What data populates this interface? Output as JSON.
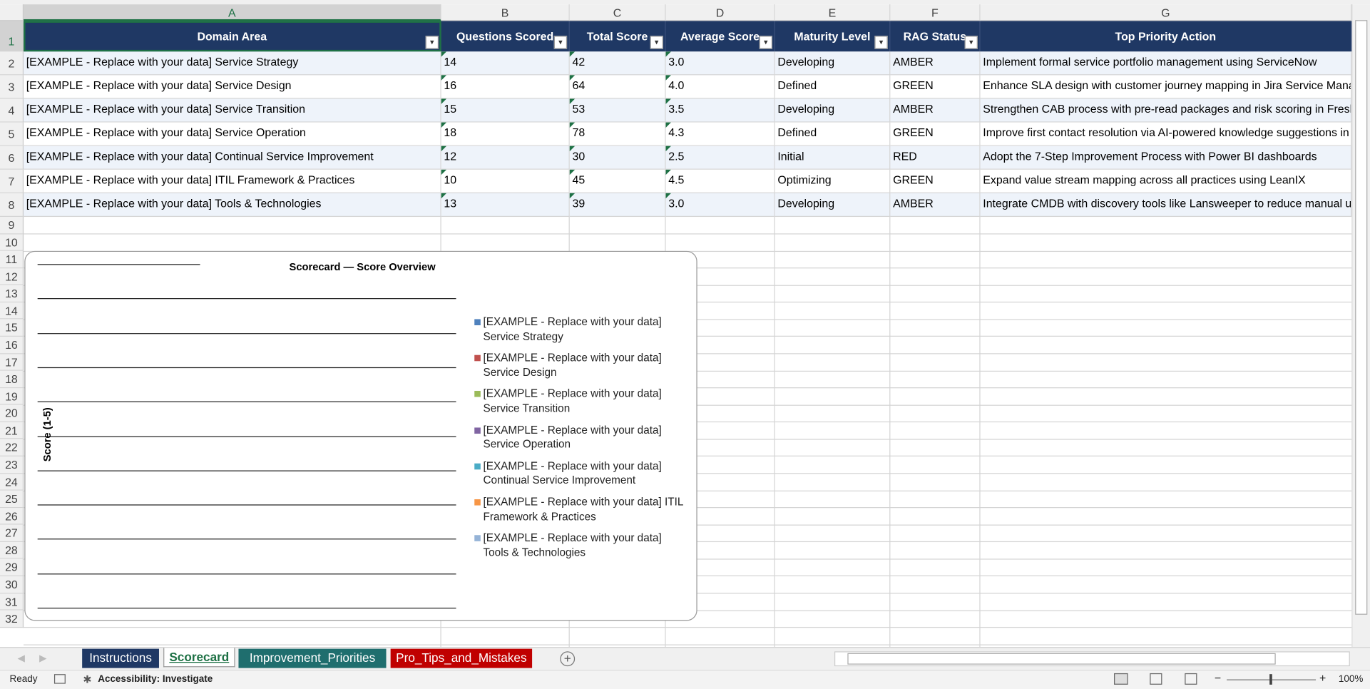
{
  "columns": [
    "A",
    "B",
    "C",
    "D",
    "E",
    "F",
    "G"
  ],
  "row_numbers": [
    1,
    2,
    3,
    4,
    5,
    6,
    7,
    8,
    9,
    10,
    11,
    12,
    13,
    14,
    15,
    16,
    17,
    18,
    19,
    20,
    21,
    22,
    23,
    24,
    25,
    26,
    27,
    28,
    29,
    30,
    31,
    32
  ],
  "table": {
    "header": [
      "Domain Area",
      "Questions Scored",
      "Total Score",
      "Average Score",
      "Maturity Level",
      "RAG Status",
      "Top Priority Action"
    ],
    "rows": [
      [
        "[EXAMPLE - Replace with your data] Service Strategy",
        14,
        42,
        "3.0",
        "Developing",
        "AMBER",
        "Implement formal service portfolio management using ServiceNow"
      ],
      [
        "[EXAMPLE - Replace with your data] Service Design",
        16,
        64,
        "4.0",
        "Defined",
        "GREEN",
        "Enhance SLA design with customer journey mapping in Jira Service Management"
      ],
      [
        "[EXAMPLE - Replace with your data] Service Transition",
        15,
        53,
        "3.5",
        "Developing",
        "AMBER",
        "Strengthen CAB process with pre-read packages and risk scoring in Freshservice"
      ],
      [
        "[EXAMPLE - Replace with your data] Service Operation",
        18,
        78,
        "4.3",
        "Defined",
        "GREEN",
        "Improve first contact resolution via AI-powered knowledge suggestions in Zendesk"
      ],
      [
        "[EXAMPLE - Replace with your data] Continual Service Improvement",
        12,
        30,
        "2.5",
        "Initial",
        "RED",
        "Adopt the 7-Step Improvement Process with Power BI dashboards"
      ],
      [
        "[EXAMPLE - Replace with your data] ITIL Framework & Practices",
        10,
        45,
        "4.5",
        "Optimizing",
        "GREEN",
        "Expand value stream mapping across all practices using LeanIX"
      ],
      [
        "[EXAMPLE - Replace with your data] Tools & Technologies",
        13,
        39,
        "3.0",
        "Developing",
        "AMBER",
        "Integrate CMDB with discovery tools like Lansweeper to reduce manual updates"
      ]
    ]
  },
  "chart": {
    "title": "Scorecard — Score Overview",
    "y_axis_label": "Score (1-5)",
    "legend": [
      {
        "name": "[EXAMPLE - Replace with your data] Service Strategy",
        "color": "#4f81bd"
      },
      {
        "name": "[EXAMPLE - Replace with your data] Service Design",
        "color": "#c0504d"
      },
      {
        "name": "[EXAMPLE - Replace with your data] Service Transition",
        "color": "#9bbb59"
      },
      {
        "name": "[EXAMPLE - Replace with your data] Service Operation",
        "color": "#8064a2"
      },
      {
        "name": "[EXAMPLE - Replace with your data] Continual Service Improvement",
        "color": "#4bacc6"
      },
      {
        "name": "[EXAMPLE - Replace with your data] ITIL Framework & Practices",
        "color": "#f79646"
      },
      {
        "name": "[EXAMPLE - Replace with your data] Tools & Technologies",
        "color": "#95b3d7"
      }
    ]
  },
  "sheet_tabs": [
    {
      "label": "Instructions",
      "bg": "#1f3864",
      "fg": "#ffffff"
    },
    {
      "label": "Scorecard",
      "bg": "#ffffff",
      "fg": "#1e7145"
    },
    {
      "label": "Improvement_Priorities",
      "bg": "#1f6e6e",
      "fg": "#ffffff"
    },
    {
      "label": "Pro_Tips_and_Mistakes",
      "bg": "#c00000",
      "fg": "#ffffff"
    }
  ],
  "status": {
    "ready": "Ready",
    "accessibility": "Accessibility: Investigate",
    "zoom": "100%"
  }
}
